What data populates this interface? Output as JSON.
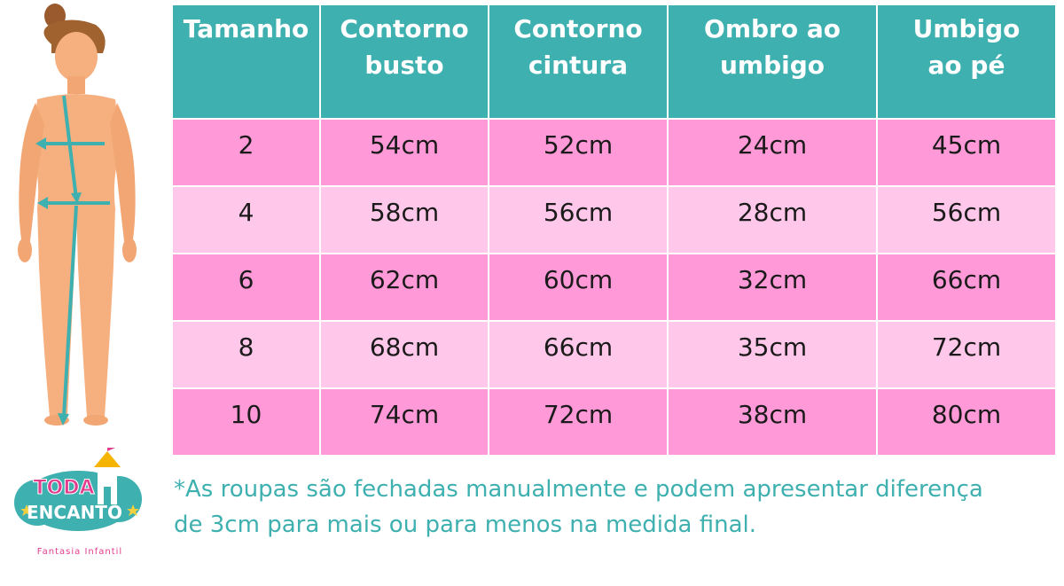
{
  "table": {
    "headers": [
      "Tamanho",
      "Contorno\nbusto",
      "Contorno\ncintura",
      "Ombro ao\numbigo",
      "Umbigo\nao pé"
    ],
    "rows": [
      [
        "2",
        "54cm",
        "52cm",
        "24cm",
        "45cm"
      ],
      [
        "4",
        "58cm",
        "56cm",
        "28cm",
        "56cm"
      ],
      [
        "6",
        "62cm",
        "60cm",
        "32cm",
        "66cm"
      ],
      [
        "8",
        "68cm",
        "66cm",
        "35cm",
        "72cm"
      ],
      [
        "10",
        "74cm",
        "72cm",
        "38cm",
        "80cm"
      ]
    ]
  },
  "footnote": "*As roupas são fechadas manualmente e podem apresentar diferença\nde 3cm para mais ou para menos na medida final.",
  "logo": {
    "line1": "TODA",
    "line2": "ENCANTO",
    "tagline": "Fantasia Infantil"
  },
  "colors": {
    "header_bg": "#3fb0b0",
    "row_dark": "#ff99d8",
    "row_light": "#ffc7e9",
    "footnote_text": "#3fb0b0",
    "arrow": "#3fb0b0",
    "skin": "#f6b07f"
  },
  "icons": {
    "figure": "body-measurement-figure",
    "logo": "castle-cloud-logo"
  }
}
